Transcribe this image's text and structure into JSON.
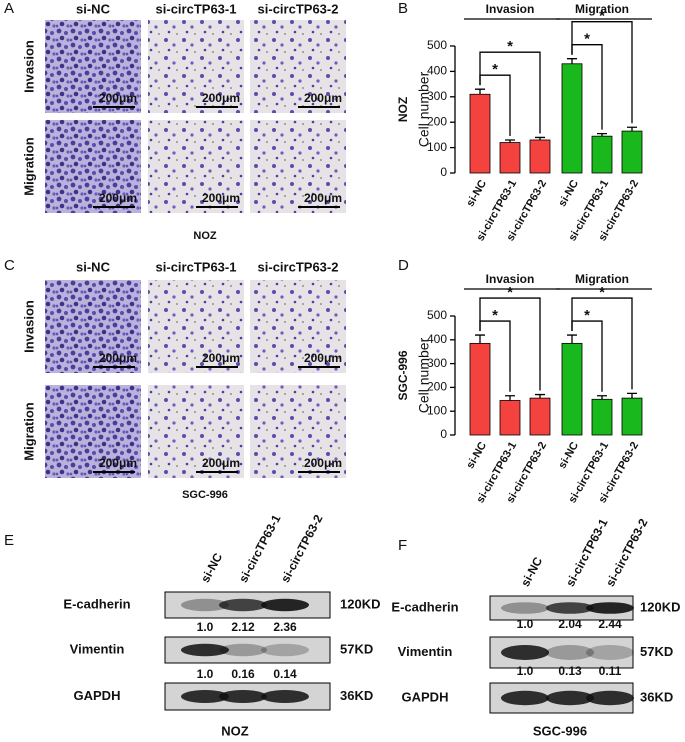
{
  "panels": {
    "a": "A",
    "b": "B",
    "c": "C",
    "d": "D",
    "e": "E",
    "f": "F"
  },
  "micrographs": [
    {
      "caption": "NOZ",
      "columns": [
        "si-NC",
        "si-circTP63-1",
        "si-circTP63-2"
      ],
      "rows": [
        "Invasion",
        "Migration"
      ],
      "scale_bar": "200μm"
    },
    {
      "caption": "SGC-996",
      "columns": [
        "si-NC",
        "si-circTP63-1",
        "si-circTP63-2"
      ],
      "rows": [
        "Invasion",
        "Migration"
      ],
      "scale_bar": "200μm"
    }
  ],
  "chart_data": [
    {
      "type": "bar",
      "ylabel": "Cell number",
      "subject": "NOZ",
      "categories": [
        "si-NC",
        "si-circTP63-1",
        "si-circTP63-2"
      ],
      "series": [
        {
          "name": "Invasion",
          "color": "#f4433f",
          "values": [
            310,
            120,
            130
          ],
          "errors": [
            20,
            10,
            10
          ],
          "significance": [
            "*",
            "*"
          ]
        },
        {
          "name": "Migration",
          "color": "#19b81c",
          "values": [
            430,
            145,
            165
          ],
          "errors": [
            20,
            10,
            15
          ],
          "significance": [
            "*",
            "*"
          ]
        }
      ],
      "ylim": [
        0,
        500
      ],
      "yticks": [
        0,
        100,
        200,
        300,
        400,
        500
      ]
    },
    {
      "type": "bar",
      "ylabel": "Cell number",
      "subject": "SGC-996",
      "categories": [
        "si-NC",
        "si-circTP63-1",
        "si-circTP63-2"
      ],
      "series": [
        {
          "name": "Invasion",
          "color": "#f4433f",
          "values": [
            385,
            145,
            155
          ],
          "errors": [
            35,
            20,
            15
          ],
          "significance": [
            "*",
            "*"
          ]
        },
        {
          "name": "Migration",
          "color": "#19b81c",
          "values": [
            385,
            150,
            155
          ],
          "errors": [
            35,
            15,
            20
          ],
          "significance": [
            "*",
            "*"
          ]
        }
      ],
      "ylim": [
        0,
        500
      ],
      "yticks": [
        0,
        100,
        200,
        300,
        400,
        500
      ]
    }
  ],
  "blots": [
    {
      "caption": "NOZ",
      "lanes": [
        "si-NC",
        "si-circTP63-1",
        "si-circTP63-2"
      ],
      "rows": [
        {
          "name": "E-cadherin",
          "size": "120KD",
          "ratios": [
            "1.0",
            "2.12",
            "2.36"
          ]
        },
        {
          "name": "Vimentin",
          "size": "57KD",
          "ratios": [
            "1.0",
            "0.16",
            "0.14"
          ]
        },
        {
          "name": "GAPDH",
          "size": "36KD"
        }
      ]
    },
    {
      "caption": "SGC-996",
      "lanes": [
        "si-NC",
        "si-circTP63-1",
        "si-circTP63-2"
      ],
      "rows": [
        {
          "name": "E-cadherin",
          "size": "120KD",
          "ratios": [
            "1.0",
            "2.04",
            "2.44"
          ]
        },
        {
          "name": "Vimentin",
          "size": "57KD",
          "ratios": [
            "1.0",
            "0.13",
            "0.11"
          ]
        },
        {
          "name": "GAPDH",
          "size": "36KD"
        }
      ]
    }
  ]
}
